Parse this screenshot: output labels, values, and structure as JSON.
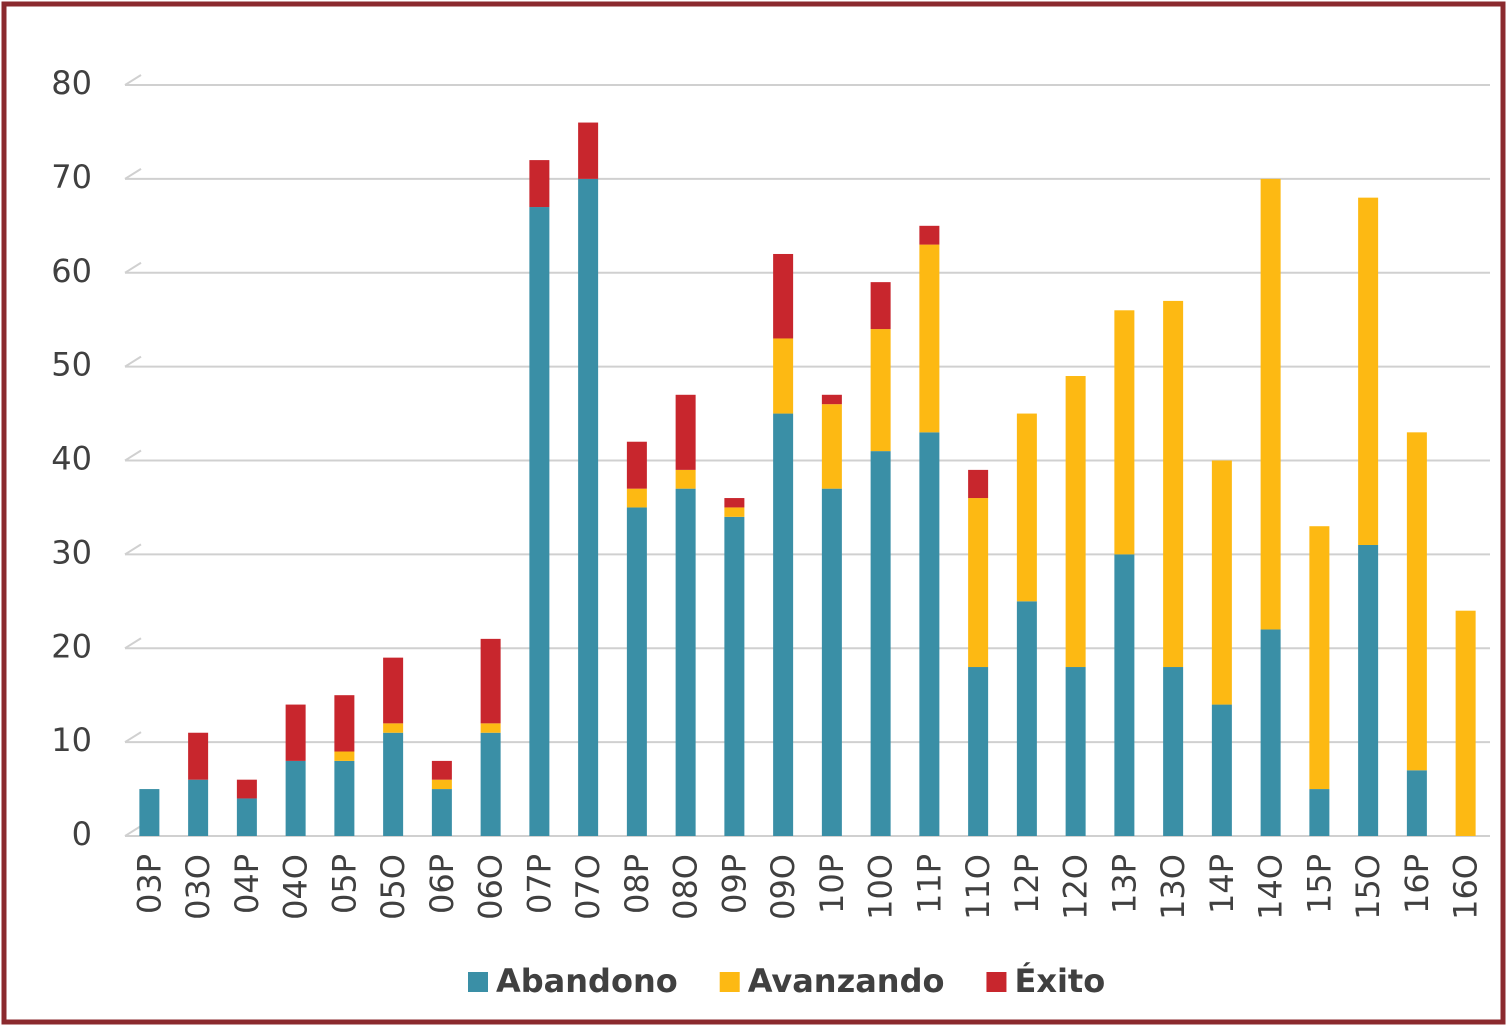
{
  "chart_data": {
    "type": "stacked_bar",
    "categories": [
      "03P",
      "03O",
      "04P",
      "04O",
      "05P",
      "05O",
      "06P",
      "06O",
      "07P",
      "07O",
      "08P",
      "08O",
      "09P",
      "09O",
      "10P",
      "10O",
      "11P",
      "11O",
      "12P",
      "12O",
      "13P",
      "13O",
      "14P",
      "14O",
      "15P",
      "15O",
      "16P",
      "16O"
    ],
    "series": [
      {
        "name": "Abandono",
        "color": "#3a8fa6",
        "values": [
          5,
          6,
          4,
          8,
          8,
          11,
          5,
          11,
          67,
          70,
          35,
          37,
          34,
          45,
          37,
          41,
          43,
          18,
          25,
          18,
          30,
          18,
          14,
          22,
          5,
          31,
          7,
          0
        ]
      },
      {
        "name": "Avanzando",
        "color": "#fdb913",
        "values": [
          0,
          0,
          0,
          0,
          1,
          1,
          1,
          1,
          0,
          0,
          2,
          2,
          1,
          8,
          9,
          13,
          20,
          18,
          20,
          31,
          26,
          39,
          26,
          48,
          28,
          37,
          36,
          24
        ]
      },
      {
        "name": "Éxito",
        "color": "#c8262d",
        "values": [
          0,
          5,
          2,
          6,
          6,
          7,
          2,
          9,
          5,
          6,
          5,
          8,
          1,
          9,
          1,
          5,
          2,
          3,
          0,
          0,
          0,
          0,
          0,
          0,
          0,
          0,
          0,
          0
        ]
      }
    ],
    "ylim": [
      0,
      80
    ],
    "yticks": [
      0,
      10,
      20,
      30,
      40,
      50,
      60,
      70,
      80
    ],
    "grid": true,
    "legend": "bottom"
  }
}
